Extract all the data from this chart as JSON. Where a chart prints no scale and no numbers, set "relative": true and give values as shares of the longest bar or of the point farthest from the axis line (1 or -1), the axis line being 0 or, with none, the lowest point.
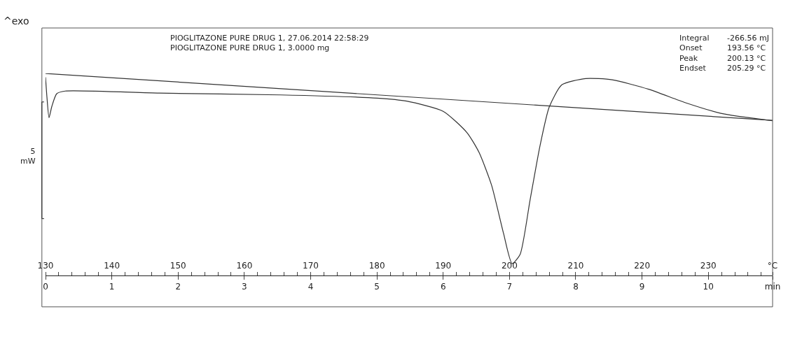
{
  "chart_data": {
    "type": "line",
    "relative": true,
    "annotations": [
      "^exo",
      "PIOGLITAZONE PURE DRUG 1, 27.06.2014 22:58:29\nPIOGLITAZONE PURE DRUG 1, 3.0000 mg",
      "Integral\nOnset\nPeak\nEndset",
      "-266.56 mJ\n193.56 °C\n200.13 °C\n205.29 °C",
      "5\nmW"
    ],
    "xlim": [
      0,
      10.97
    ],
    "xticks": [
      0,
      1,
      2,
      3,
      4,
      5,
      6,
      7,
      8,
      9,
      10,
      {
        "value": 10.97,
        "label": "min"
      }
    ],
    "x2lim": [
      130,
      239.7
    ],
    "x2ticks": [
      130,
      {
        "value": 132,
        "label": null
      },
      {
        "value": 134,
        "label": null
      },
      {
        "value": 136,
        "label": null
      },
      {
        "value": 138,
        "label": null
      },
      140,
      {
        "value": 142,
        "label": null
      },
      {
        "value": 144,
        "label": null
      },
      {
        "value": 146,
        "label": null
      },
      {
        "value": 148,
        "label": null
      },
      150,
      {
        "value": 152,
        "label": null
      },
      {
        "value": 154,
        "label": null
      },
      {
        "value": 156,
        "label": null
      },
      {
        "value": 158,
        "label": null
      },
      160,
      {
        "value": 162,
        "label": null
      },
      {
        "value": 164,
        "label": null
      },
      {
        "value": 166,
        "label": null
      },
      {
        "value": 168,
        "label": null
      },
      170,
      {
        "value": 172,
        "label": null
      },
      {
        "value": 174,
        "label": null
      },
      {
        "value": 176,
        "label": null
      },
      {
        "value": 178,
        "label": null
      },
      180,
      {
        "value": 182,
        "label": null
      },
      {
        "value": 184,
        "label": null
      },
      {
        "value": 186,
        "label": null
      },
      {
        "value": 188,
        "label": null
      },
      190,
      {
        "value": 192,
        "label": null
      },
      {
        "value": 194,
        "label": null
      },
      {
        "value": 196,
        "label": null
      },
      {
        "value": 198,
        "label": null
      },
      200,
      {
        "value": 202,
        "label": null
      },
      {
        "value": 204,
        "label": null
      },
      {
        "value": 206,
        "label": null
      },
      {
        "value": 208,
        "label": null
      },
      210,
      {
        "value": 212,
        "label": null
      },
      {
        "value": 214,
        "label": null
      },
      {
        "value": 216,
        "label": null
      },
      {
        "value": 218,
        "label": null
      },
      220,
      {
        "value": 222,
        "label": null
      },
      {
        "value": 224,
        "label": null
      },
      {
        "value": 226,
        "label": null
      },
      {
        "value": 228,
        "label": null
      },
      230,
      {
        "value": 232,
        "label": null
      },
      {
        "value": 234,
        "label": null
      },
      {
        "value": 236,
        "label": null
      },
      {
        "value": 238,
        "label": null
      },
      {
        "value": 239.7,
        "label": "°C"
      }
    ],
    "marker": "none",
    "line_style": "solid",
    "series": [
      {
        "color": "#333333",
        "x": [
          0,
          0.021,
          0.053,
          0.095,
          0.169,
          0.296,
          1.714,
          3.545,
          5.005,
          5.45,
          6.0,
          6.36,
          6.54,
          6.73,
          6.91,
          7.04,
          7.16,
          7.31,
          7.46,
          7.6,
          7.79,
          8.15,
          8.55,
          9.1,
          9.65,
          10.19,
          10.97
        ],
        "values": [
          0.981,
          0.884,
          0.781,
          0.837,
          0.9,
          0.913,
          0.903,
          0.894,
          0.878,
          0.863,
          0.813,
          0.707,
          0.61,
          0.447,
          0.209,
          0.059,
          0.104,
          0.372,
          0.641,
          0.834,
          0.944,
          0.975,
          0.969,
          0.922,
          0.856,
          0.803,
          0.766
        ]
      },
      {
        "color": "#333333",
        "x": [
          0,
          10.97
        ],
        "values": [
          1.0,
          0.768
        ]
      }
    ]
  }
}
